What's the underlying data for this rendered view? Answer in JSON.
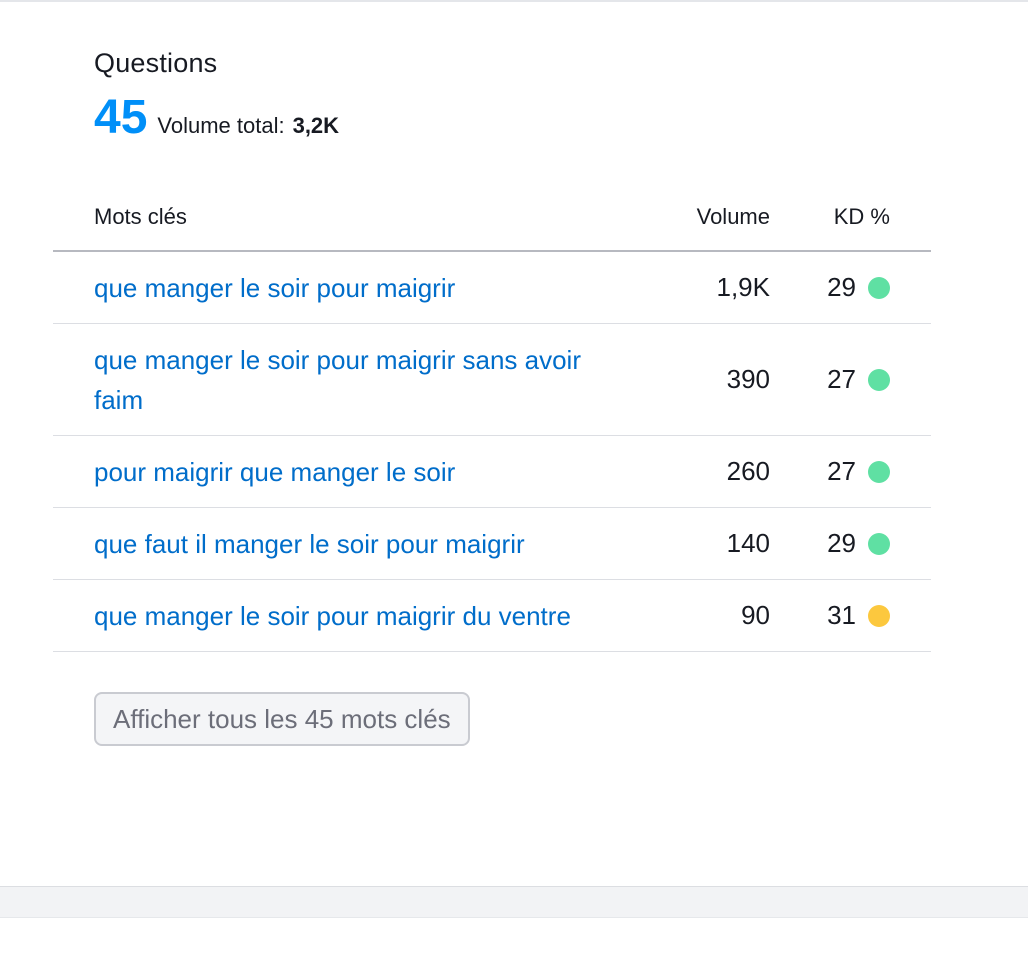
{
  "widget": {
    "title": "Questions",
    "count": "45",
    "volume_label": "Volume total:",
    "volume_value": "3,2K"
  },
  "table": {
    "headers": {
      "keyword": "Mots clés",
      "volume": "Volume",
      "kd": "KD %"
    },
    "rows": [
      {
        "keyword": "que manger le soir pour maigrir",
        "volume": "1,9K",
        "kd": "29",
        "kd_color": "#5fe0a3"
      },
      {
        "keyword": "que manger le soir pour maigrir sans avoir faim",
        "volume": "390",
        "kd": "27",
        "kd_color": "#5fe0a3"
      },
      {
        "keyword": "pour maigrir que manger le soir",
        "volume": "260",
        "kd": "27",
        "kd_color": "#5fe0a3"
      },
      {
        "keyword": "que faut il manger le soir pour maigrir",
        "volume": "140",
        "kd": "29",
        "kd_color": "#5fe0a3"
      },
      {
        "keyword": "que manger le soir pour maigrir du ventre",
        "volume": "90",
        "kd": "31",
        "kd_color": "#fcc83e"
      }
    ]
  },
  "show_all_button": "Afficher tous les 45 mots clés",
  "colors": {
    "accent": "#008ff8",
    "link": "#006dca",
    "kd_easy": "#5fe0a3",
    "kd_possible": "#fcc83e"
  }
}
